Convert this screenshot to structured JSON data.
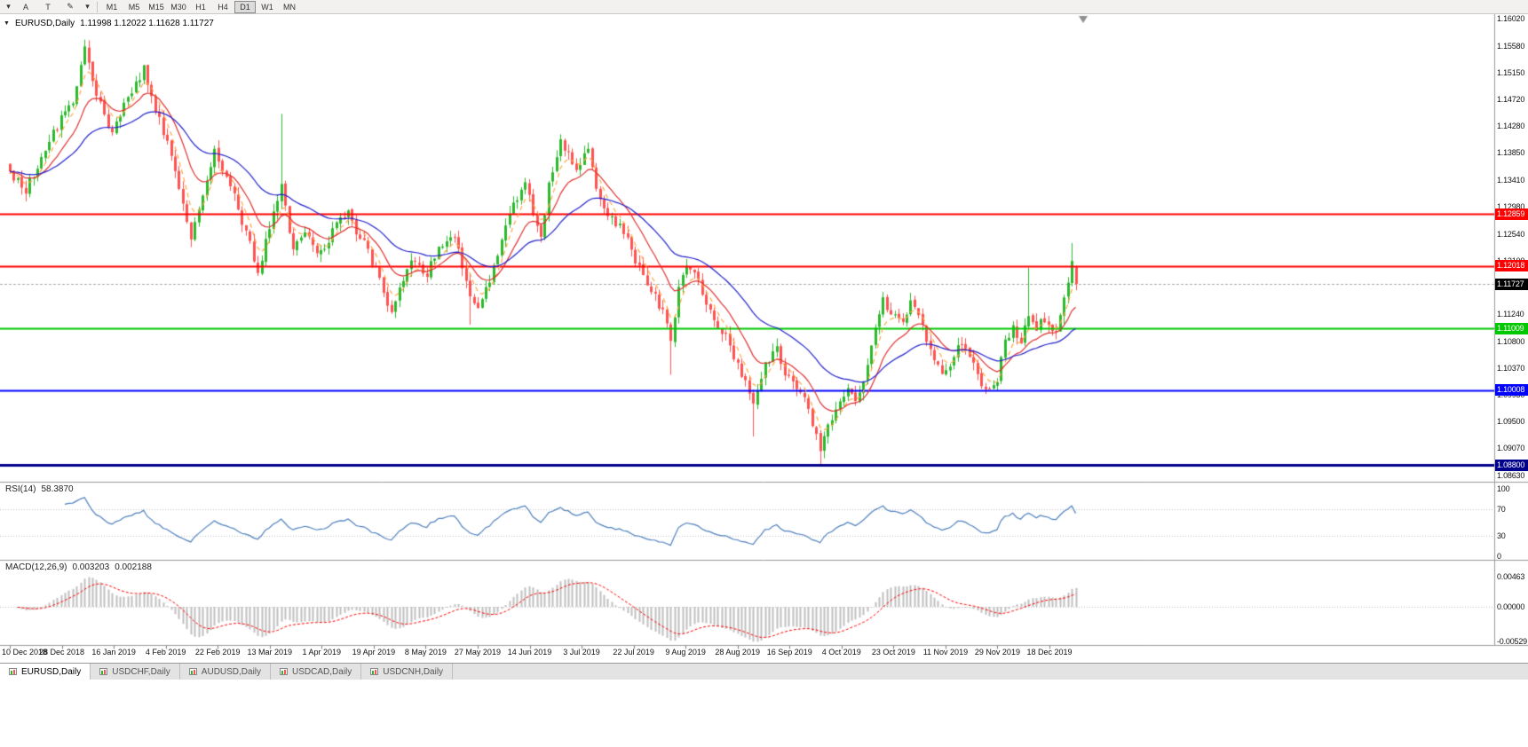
{
  "toolbar": {
    "tools": [
      {
        "name": "chart-menu",
        "label": "▾",
        "small": true
      },
      {
        "name": "cursor-a-tool",
        "label": "A"
      },
      {
        "name": "text-tool",
        "label": "T"
      },
      {
        "name": "draw-tool",
        "label": "✎"
      },
      {
        "name": "draw-tool-dropdown",
        "label": "▾",
        "small": true
      }
    ],
    "timeframes": [
      {
        "label": "M1"
      },
      {
        "label": "M5"
      },
      {
        "label": "M15"
      },
      {
        "label": "M30"
      },
      {
        "label": "H1"
      },
      {
        "label": "H4"
      },
      {
        "label": "D1",
        "active": true
      },
      {
        "label": "W1"
      },
      {
        "label": "MN"
      }
    ]
  },
  "chart_data": {
    "type": "candlestick",
    "symbol": "EURUSD",
    "period": "Daily",
    "title": "EURUSD,Daily",
    "collapse_icon": "▼",
    "ohlc_label": "1.11998 1.12022 1.11628 1.11727",
    "last_candle": {
      "open": 1.11998,
      "high": 1.12022,
      "low": 1.11628,
      "close": 1.11727
    },
    "price_axis_ticks": [
      "1.16020",
      "1.15580",
      "1.15150",
      "1.14720",
      "1.14280",
      "1.13850",
      "1.13410",
      "1.12980",
      "1.12540",
      "1.12100",
      "1.11670",
      "1.11240",
      "1.10800",
      "1.10370",
      "1.09930",
      "1.09500",
      "1.09070",
      "1.08630"
    ],
    "date_axis_labels": [
      "10 Dec 2018",
      "28 Dec 2018",
      "16 Jan 2019",
      "4 Feb 2019",
      "22 Feb 2019",
      "13 Mar 2019",
      "1 Apr 2019",
      "19 Apr 2019",
      "8 May 2019",
      "27 May 2019",
      "14 Jun 2019",
      "3 Jul 2019",
      "22 Jul 2019",
      "9 Aug 2019",
      "28 Aug 2019",
      "16 Sep 2019",
      "4 Oct 2019",
      "23 Oct 2019",
      "11 Nov 2019",
      "29 Nov 2019",
      "18 Dec 2019"
    ],
    "horizontal_lines": [
      {
        "price": 1.12859,
        "label": "1.12859",
        "color": "#FF0000",
        "width": 2
      },
      {
        "price": 1.12018,
        "label": "1.12018",
        "color": "#FF0000",
        "width": 2
      },
      {
        "price": 1.11009,
        "label": "1.11009",
        "color": "#00C800",
        "width": 2
      },
      {
        "price": 1.10008,
        "label": "1.10008",
        "color": "#0000FF",
        "width": 2
      },
      {
        "price": 1.088,
        "label": "1.08800",
        "color": "#00008B",
        "width": 3
      }
    ],
    "bid": {
      "price": 1.11727,
      "label": "1.11727",
      "badge_color": "#000000"
    },
    "candles": {
      "count": 272,
      "up_color": "#2DB92D",
      "down_color": "#FF5252",
      "close_anchors": [
        [
          0,
          1.1355
        ],
        [
          4,
          1.1325
        ],
        [
          11,
          1.142
        ],
        [
          16,
          1.1465
        ],
        [
          19,
          1.155
        ],
        [
          22,
          1.148
        ],
        [
          26,
          1.1415
        ],
        [
          29,
          1.1465
        ],
        [
          34,
          1.152
        ],
        [
          37,
          1.1455
        ],
        [
          40,
          1.14
        ],
        [
          44,
          1.13
        ],
        [
          46,
          1.1245
        ],
        [
          49,
          1.131
        ],
        [
          52,
          1.139
        ],
        [
          56,
          1.1335
        ],
        [
          58,
          1.129
        ],
        [
          61,
          1.1235
        ],
        [
          63,
          1.119
        ],
        [
          66,
          1.1265
        ],
        [
          69,
          1.133
        ],
        [
          72,
          1.123
        ],
        [
          75,
          1.1255
        ],
        [
          79,
          1.122
        ],
        [
          82,
          1.126
        ],
        [
          86,
          1.129
        ],
        [
          88,
          1.126
        ],
        [
          91,
          1.1225
        ],
        [
          95,
          1.116
        ],
        [
          97,
          1.112
        ],
        [
          100,
          1.1185
        ],
        [
          102,
          1.1215
        ],
        [
          106,
          1.119
        ],
        [
          109,
          1.1235
        ],
        [
          113,
          1.125
        ],
        [
          115,
          1.12
        ],
        [
          117,
          1.116
        ],
        [
          119,
          1.113
        ],
        [
          122,
          1.118
        ],
        [
          124,
          1.1215
        ],
        [
          127,
          1.1285
        ],
        [
          131,
          1.134
        ],
        [
          133,
          1.129
        ],
        [
          135,
          1.1245
        ],
        [
          137,
          1.133
        ],
        [
          140,
          1.14
        ],
        [
          142,
          1.138
        ],
        [
          144,
          1.1355
        ],
        [
          147,
          1.139
        ],
        [
          149,
          1.133
        ],
        [
          152,
          1.1285
        ],
        [
          156,
          1.1255
        ],
        [
          158,
          1.123
        ],
        [
          161,
          1.118
        ],
        [
          165,
          1.114
        ],
        [
          167,
          1.1115
        ],
        [
          168,
          1.1075
        ],
        [
          170,
          1.1175
        ],
        [
          172,
          1.121
        ],
        [
          176,
          1.116
        ],
        [
          179,
          1.1115
        ],
        [
          183,
          1.1075
        ],
        [
          185,
          1.104
        ],
        [
          187,
          1.101
        ],
        [
          189,
          1.0985
        ],
        [
          192,
          1.104
        ],
        [
          195,
          1.107
        ],
        [
          197,
          1.103
        ],
        [
          200,
          1.1
        ],
        [
          202,
          1.099
        ],
        [
          204,
          1.095
        ],
        [
          206,
          1.0905
        ],
        [
          209,
          1.0955
        ],
        [
          211,
          1.099
        ],
        [
          213,
          1.1
        ],
        [
          215,
          1.0985
        ],
        [
          218,
          1.104
        ],
        [
          220,
          1.11
        ],
        [
          222,
          1.1145
        ],
        [
          224,
          1.113
        ],
        [
          227,
          1.111
        ],
        [
          229,
          1.115
        ],
        [
          231,
          1.113
        ],
        [
          233,
          1.1085
        ],
        [
          236,
          1.104
        ],
        [
          238,
          1.103
        ],
        [
          240,
          1.106
        ],
        [
          242,
          1.108
        ],
        [
          245,
          1.105
        ],
        [
          247,
          1.101
        ],
        [
          248,
          1.0995
        ],
        [
          251,
          1.102
        ],
        [
          253,
          1.1075
        ],
        [
          255,
          1.11
        ],
        [
          257,
          1.108
        ],
        [
          259,
          1.1125
        ],
        [
          261,
          1.1105
        ],
        [
          262,
          1.1115
        ],
        [
          264,
          1.11
        ],
        [
          266,
          1.109
        ],
        [
          267,
          1.1125
        ],
        [
          269,
          1.1175
        ],
        [
          270,
          1.121
        ],
        [
          271,
          1.11727
        ]
      ],
      "wick_overrides": {
        "69": {
          "h": 1.1448
        },
        "117": {
          "l": 1.1107
        },
        "168": {
          "l": 1.1026
        },
        "189": {
          "l": 1.0926
        },
        "204": {
          "l": 1.0941
        },
        "206": {
          "l": 1.0879
        },
        "259": {
          "h": 1.1199
        },
        "270": {
          "h": 1.1239
        }
      }
    },
    "moving_averages": [
      {
        "period": 5,
        "color": "#FFA640",
        "style": "dashed"
      },
      {
        "period": 13,
        "color": "#E03030",
        "style": "solid"
      },
      {
        "period": 34,
        "color": "#2222CC",
        "style": "solid"
      }
    ],
    "rsi": {
      "name": "RSI(14)",
      "period": 14,
      "value": "58.3870",
      "levels": [
        "100",
        "70",
        "30",
        "0"
      ],
      "upper": 70,
      "lower": 30,
      "color": "#4F81BD"
    },
    "macd": {
      "name": "MACD(12,26,9)",
      "fast": 12,
      "slow": 26,
      "signal": 9,
      "values": [
        "0.003203",
        "0.002188"
      ],
      "axis_labels": [
        "0.00463",
        "0.00000",
        "-0.00529"
      ],
      "histogram_color": "#C0C0C0",
      "signal_color": "#FF0000"
    }
  },
  "tabs": [
    {
      "label": "EURUSD,Daily",
      "active": true
    },
    {
      "label": "USDCHF,Daily",
      "active": false
    },
    {
      "label": "AUDUSD,Daily",
      "active": false
    },
    {
      "label": "USDCAD,Daily",
      "active": false
    },
    {
      "label": "USDCNH,Daily",
      "active": false
    }
  ]
}
